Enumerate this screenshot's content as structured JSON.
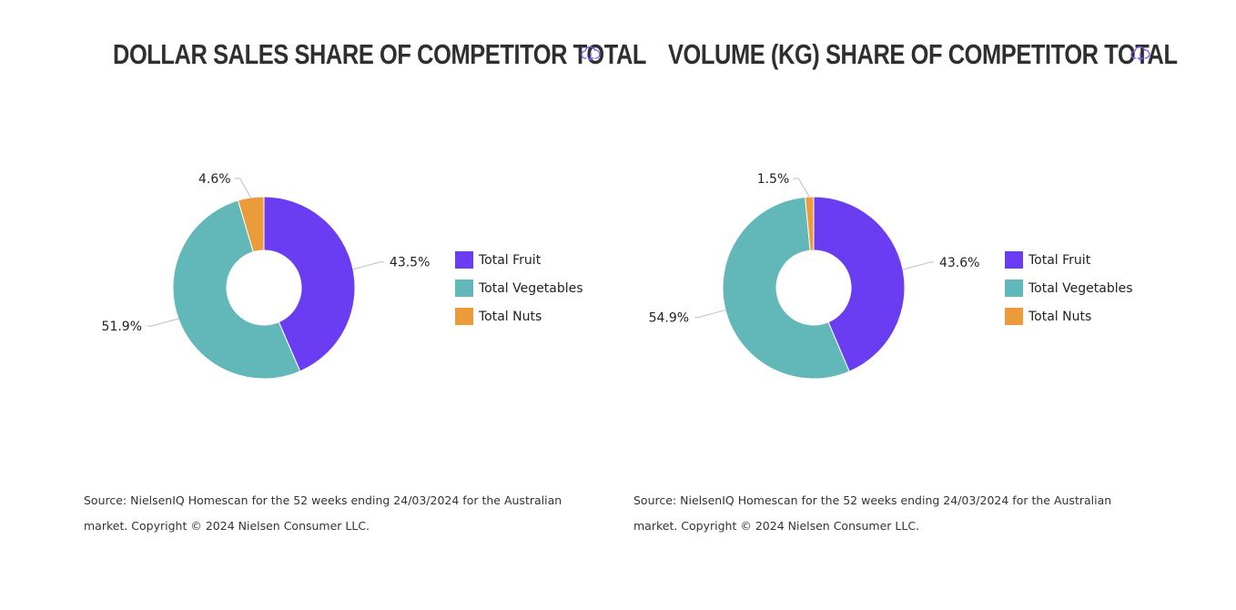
{
  "colors": {
    "fruit": "#6a3df2",
    "vegetables": "#62b8b8",
    "nuts": "#ec9b3b",
    "download_icon": "#7b55f0"
  },
  "chart_data": [
    {
      "type": "pie",
      "variant": "donut",
      "title": "DOLLAR SALES SHARE OF COMPETITOR TOTAL",
      "unit": "%",
      "legend_position": "right",
      "labels": [
        "Total Fruit",
        "Total Vegetables",
        "Total Nuts"
      ],
      "values": [
        43.5,
        51.9,
        4.6
      ],
      "value_labels": [
        "43.5%",
        "51.9%",
        "4.6%"
      ],
      "source": "Source: NielsenIQ Homescan for the 52 weeks ending 24/03/2024 for the Australian market. Copyright © 2024 Nielsen Consumer LLC."
    },
    {
      "type": "pie",
      "variant": "donut",
      "title": "VOLUME (KG) SHARE OF COMPETITOR TOTAL",
      "unit": "%",
      "legend_position": "right",
      "labels": [
        "Total Fruit",
        "Total Vegetables",
        "Total Nuts"
      ],
      "values": [
        43.6,
        54.9,
        1.5
      ],
      "value_labels": [
        "43.6%",
        "54.9%",
        "1.5%"
      ],
      "source": "Source: NielsenIQ Homescan for the 52 weeks ending 24/03/2024 for the Australian market. Copyright © 2024 Nielsen Consumer LLC."
    }
  ],
  "icons": {
    "download": "cloud-download-icon"
  }
}
